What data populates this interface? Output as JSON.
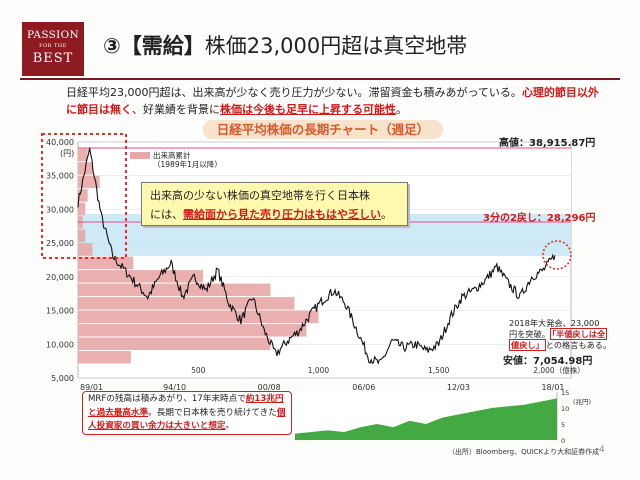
{
  "logo": {
    "line1": "PASSION",
    "line2": "FOR THE",
    "line3": "BEST"
  },
  "title": {
    "prefix": "③【需給】",
    "rest": "株価23,000円超は真空地帯"
  },
  "intro": {
    "text1": "日経平均23,000円超は、出来高が少なく売り圧力が少ない。滞留資金も積みあがっている。",
    "text2": "心理的節目以外に節目は無く",
    "text3": "、好業績を背景に",
    "text4": "株価は今後も足早に上昇する可能性",
    "text5": "。"
  },
  "chart_title": "日経平均株価の長期チャート（週足）",
  "high_label": "高値：38,915.87円",
  "two_thirds_label": "3分の2戻し：28,296円",
  "low_label": "安値：7,054.98円",
  "volume_legend": {
    "line1": "出来高累計",
    "line2": "（1989年1月以降）"
  },
  "callout": {
    "line1": "出来高の少ない株価の真空地帯を行く日本株",
    "line2a": "には、",
    "line2b": "需給面から見た売り圧力はもはや乏しい",
    "line2c": "。"
  },
  "note2018": {
    "line1": "2018年大発会、23,000",
    "line2": "円を突破。",
    "line2b": "「半値戻しは全",
    "line3a": "値戻し」",
    "line3b": "との格言もある。"
  },
  "mrf": {
    "text1": "MRFの残高は積みあがり、17年末時点で",
    "text2": "約13兆円と過去最高水準",
    "text3": "。長期で日本株を売り続けてきた",
    "text4": "個人投資家の買い余力は大きいと想定",
    "text5": "。"
  },
  "source": "（出所）Bloomberg、QUICKより大和証券作成",
  "page_number": "4",
  "chart_data": {
    "type": "line",
    "y_unit_label": "(円)",
    "y_ticks": [
      "40,000",
      "35,000",
      "30,000",
      "25,000",
      "20,000",
      "15,000",
      "10,000",
      "5,000"
    ],
    "ylim": [
      5000,
      40000
    ],
    "x_ticks": [
      "89/01",
      "94/10",
      "00/08",
      "06/06",
      "12/03",
      "18/01"
    ],
    "volume_ticks": [
      "500",
      "1,000",
      "1,500",
      "2,000（億株）"
    ],
    "series": [
      {
        "values": [
          31000,
          38900,
          29000,
          23000,
          21000,
          19000,
          17000,
          20000,
          22000,
          17000,
          20000,
          18000,
          21000,
          16000,
          13500,
          17000,
          12000,
          8500,
          10500,
          12000,
          14500,
          16500,
          18000,
          16000,
          12000,
          8000,
          7100,
          10500,
          9500,
          10000,
          9000,
          10000,
          14000,
          17000,
          18000,
          19500,
          21500,
          19000,
          17000,
          20000,
          21000,
          23200
        ]
      }
    ],
    "volume_profile": {
      "price_levels": [
        38000,
        36000,
        34000,
        32000,
        30000,
        28000,
        26000,
        24000,
        22000,
        20000,
        18000,
        16000,
        14000,
        12000,
        10000,
        8000
      ],
      "volume": [
        40,
        60,
        90,
        40,
        30,
        20,
        30,
        60,
        230,
        520,
        800,
        900,
        1000,
        950,
        800,
        220
      ]
    },
    "mrf_chart": {
      "y_unit": "(兆円)",
      "y_ticks": [
        "15",
        "10",
        "5",
        "0"
      ],
      "values": [
        2,
        2.5,
        3,
        2.5,
        4,
        5,
        4,
        6,
        5,
        7,
        8,
        9,
        10,
        10.5,
        11,
        12,
        13
      ]
    }
  }
}
